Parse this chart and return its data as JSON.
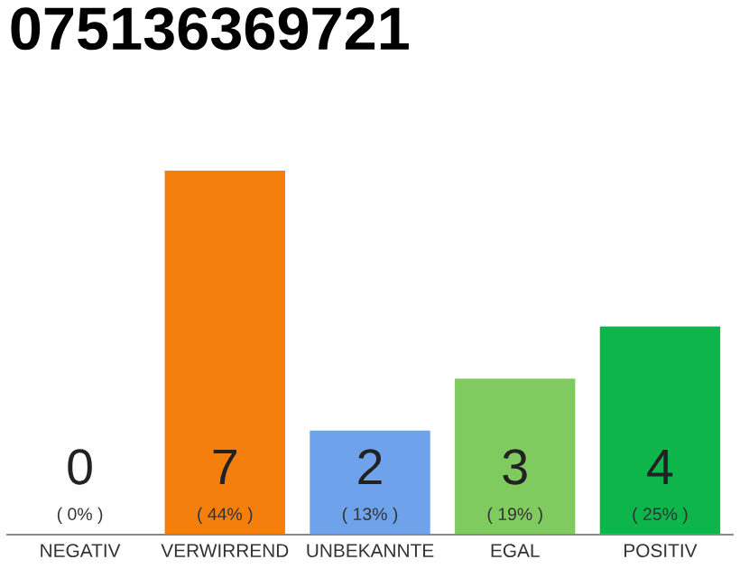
{
  "chart_data": {
    "type": "bar",
    "title": "075136369721",
    "categories": [
      "NEGATIV",
      "VERWIRREND",
      "UNBEKANNTE",
      "EGAL",
      "POSITIV"
    ],
    "values": [
      0,
      7,
      2,
      3,
      4
    ],
    "colors": [
      "#999999",
      "#f47f0c",
      "#6ea3ec",
      "#80cb5f",
      "#0db54a"
    ],
    "value_labels": [
      "0",
      "7",
      "2",
      "3",
      "4"
    ],
    "annotations": [
      "( 0% )",
      "( 44% )",
      "( 13% )",
      "( 19% )",
      "( 25% )"
    ],
    "tick_labels": "x",
    "grid": false,
    "legend": false
  }
}
